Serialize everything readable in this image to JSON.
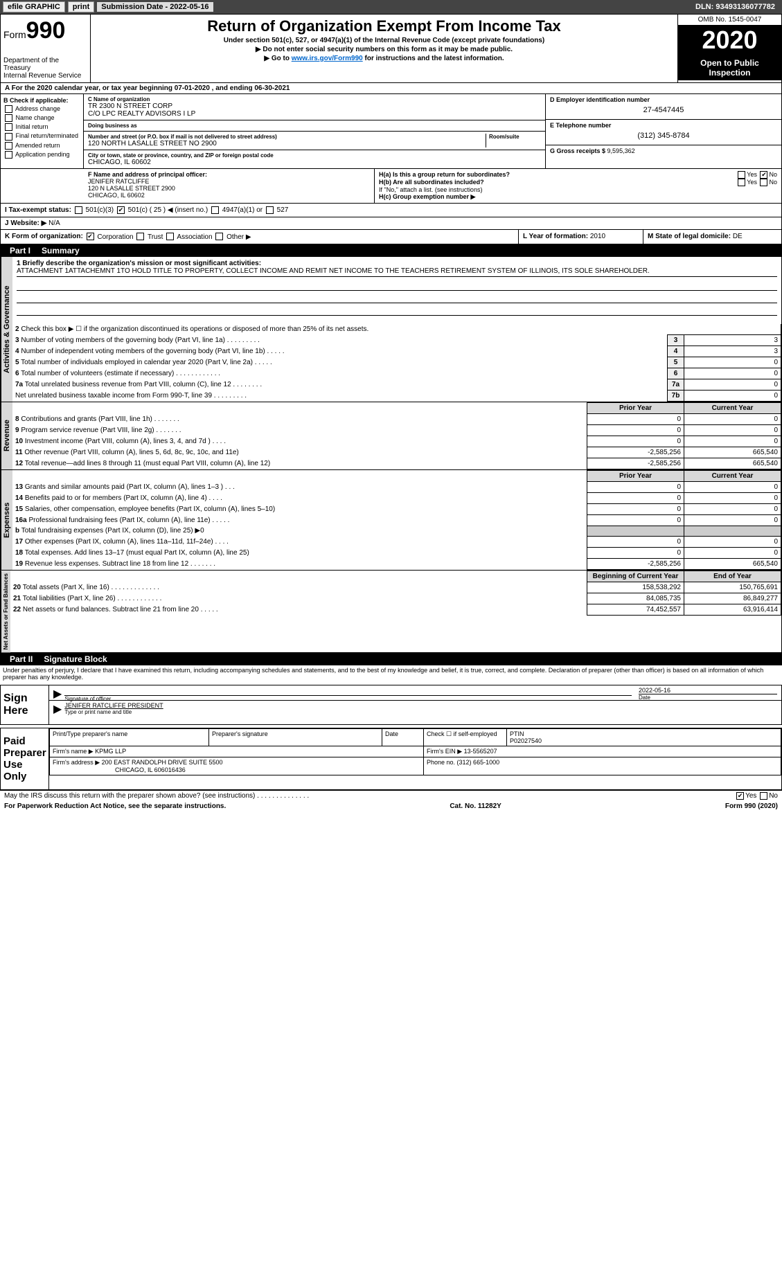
{
  "topbar": {
    "efile": "efile GRAPHIC",
    "print": "print",
    "submission_label": "Submission Date - ",
    "submission_date": "2022-05-16",
    "dln_label": "DLN: ",
    "dln": "93493136077782"
  },
  "header": {
    "form_word": "Form",
    "form_number": "990",
    "dept": "Department of the Treasury\nInternal Revenue Service",
    "title": "Return of Organization Exempt From Income Tax",
    "subtitle": "Under section 501(c), 527, or 4947(a)(1) of the Internal Revenue Code (except private foundations)",
    "note1": "▶ Do not enter social security numbers on this form as it may be made public.",
    "note2_pre": "▶ Go to ",
    "note2_link": "www.irs.gov/Form990",
    "note2_post": " for instructions and the latest information.",
    "omb": "OMB No. 1545-0047",
    "year": "2020",
    "open": "Open to Public Inspection"
  },
  "period": {
    "prefix": "A For the 2020 calendar year, or tax year beginning ",
    "start": "07-01-2020",
    "mid": " , and ending ",
    "end": "06-30-2021"
  },
  "sectionB": {
    "label": "B Check if applicable:",
    "options": [
      "Address change",
      "Name change",
      "Initial return",
      "Final return/terminated",
      "Amended return",
      "Application pending"
    ]
  },
  "sectionC": {
    "name_lbl": "C Name of organization",
    "name": "TR 2300 N STREET CORP",
    "care_of": "C/O LPC REALTY ADVISORS I LP",
    "dba_lbl": "Doing business as",
    "dba": "",
    "addr_lbl": "Number and street (or P.O. box if mail is not delivered to street address)",
    "addr": "120 NORTH LASALLE STREET NO 2900",
    "room_lbl": "Room/suite",
    "city_lbl": "City or town, state or province, country, and ZIP or foreign postal code",
    "city": "CHICAGO, IL  60602"
  },
  "sectionD": {
    "ein_lbl": "D Employer identification number",
    "ein": "27-4547445"
  },
  "sectionE": {
    "tel_lbl": "E Telephone number",
    "tel": "(312) 345-8784"
  },
  "sectionG": {
    "gross_lbl": "G Gross receipts $ ",
    "gross": "9,595,362"
  },
  "sectionF": {
    "lbl": "F Name and address of principal officer:",
    "name": "JENIFER RATCLIFFE",
    "addr1": "120 N LASALLE STREET 2900",
    "addr2": "CHICAGO, IL  60602"
  },
  "sectionH": {
    "ha": "H(a)  Is this a group return for subordinates?",
    "ha_yes": "Yes",
    "ha_no": "No",
    "hb": "H(b)  Are all subordinates included?",
    "hb_yes": "Yes",
    "hb_no": "No",
    "hb_note": "If \"No,\" attach a list. (see instructions)",
    "hc": "H(c)  Group exemption number ▶"
  },
  "sectionI": {
    "lbl": "I   Tax-exempt status:",
    "opt1": "501(c)(3)",
    "opt2_pre": "501(c) ( ",
    "opt2_num": "25",
    "opt2_post": " ) ◀ (insert no.)",
    "opt3": "4947(a)(1) or",
    "opt4": "527"
  },
  "sectionJ": {
    "lbl": "J   Website: ▶",
    "val": "N/A"
  },
  "sectionK": {
    "lbl": "K Form of organization:",
    "opts": [
      "Corporation",
      "Trust",
      "Association",
      "Other ▶"
    ],
    "checked": 0
  },
  "sectionL": {
    "lbl": "L Year of formation: ",
    "val": "2010"
  },
  "sectionM": {
    "lbl": "M State of legal domicile: ",
    "val": "DE"
  },
  "partI": {
    "part": "Part I",
    "title": "Summary"
  },
  "mission": {
    "lbl": "1   Briefly describe the organization's mission or most significant activities:",
    "text": "ATTACHMENT 1ATTACHEMNT 1TO HOLD TITLE TO PROPERTY, COLLECT INCOME AND REMIT NET INCOME TO THE TEACHERS RETIREMENT SYSTEM OF ILLINOIS, ITS SOLE SHAREHOLDER."
  },
  "governance_lines": [
    {
      "n": "2",
      "t": "Check this box ▶ ☐  if the organization discontinued its operations or disposed of more than 25% of its net assets."
    },
    {
      "n": "3",
      "t": "Number of voting members of the governing body (Part VI, line 1a)  .  .  .  .  .  .  .  .  .",
      "col": "3",
      "v": "3"
    },
    {
      "n": "4",
      "t": "Number of independent voting members of the governing body (Part VI, line 1b)  .  .  .  .  .",
      "col": "4",
      "v": "3"
    },
    {
      "n": "5",
      "t": "Total number of individuals employed in calendar year 2020 (Part V, line 2a)  .  .  .  .  .",
      "col": "5",
      "v": "0"
    },
    {
      "n": "6",
      "t": "Total number of volunteers (estimate if necessary)  .  .  .  .  .  .  .  .  .  .  .  .",
      "col": "6",
      "v": "0"
    },
    {
      "n": "7a",
      "t": "Total unrelated business revenue from Part VIII, column (C), line 12  .  .  .  .  .  .  .  .",
      "col": "7a",
      "v": "0"
    },
    {
      "n": "",
      "t": "Net unrelated business taxable income from Form 990-T, line 39  .  .  .  .  .  .  .  .  .",
      "col": "7b",
      "v": "0"
    }
  ],
  "fin_headers": {
    "prior": "Prior Year",
    "current": "Current Year",
    "boy": "Beginning of Current Year",
    "eoy": "End of Year"
  },
  "revenue": [
    {
      "n": "8",
      "t": "Contributions and grants (Part VIII, line 1h)  .  .  .  .  .  .  .",
      "p": "0",
      "c": "0"
    },
    {
      "n": "9",
      "t": "Program service revenue (Part VIII, line 2g)  .  .  .  .  .  .  .",
      "p": "0",
      "c": "0"
    },
    {
      "n": "10",
      "t": "Investment income (Part VIII, column (A), lines 3, 4, and 7d )  .  .  .  .",
      "p": "0",
      "c": "0"
    },
    {
      "n": "11",
      "t": "Other revenue (Part VIII, column (A), lines 5, 6d, 8c, 9c, 10c, and 11e)",
      "p": "-2,585,256",
      "c": "665,540"
    },
    {
      "n": "12",
      "t": "Total revenue—add lines 8 through 11 (must equal Part VIII, column (A), line 12)",
      "p": "-2,585,256",
      "c": "665,540"
    }
  ],
  "expenses": [
    {
      "n": "13",
      "t": "Grants and similar amounts paid (Part IX, column (A), lines 1–3 )  .  .  .",
      "p": "0",
      "c": "0"
    },
    {
      "n": "14",
      "t": "Benefits paid to or for members (Part IX, column (A), line 4)  .  .  .  .",
      "p": "0",
      "c": "0"
    },
    {
      "n": "15",
      "t": "Salaries, other compensation, employee benefits (Part IX, column (A), lines 5–10)",
      "p": "0",
      "c": "0"
    },
    {
      "n": "16a",
      "t": "Professional fundraising fees (Part IX, column (A), line 11e)  .  .  .  .  .",
      "p": "0",
      "c": "0"
    },
    {
      "n": "b",
      "t": "Total fundraising expenses (Part IX, column (D), line 25) ▶0",
      "p": "",
      "c": "",
      "shade": true
    },
    {
      "n": "17",
      "t": "Other expenses (Part IX, column (A), lines 11a–11d, 11f–24e)  .  .  .  .",
      "p": "0",
      "c": "0"
    },
    {
      "n": "18",
      "t": "Total expenses. Add lines 13–17 (must equal Part IX, column (A), line 25)",
      "p": "0",
      "c": "0"
    },
    {
      "n": "19",
      "t": "Revenue less expenses. Subtract line 18 from line 12  .  .  .  .  .  .  .",
      "p": "-2,585,256",
      "c": "665,540"
    }
  ],
  "netassets": [
    {
      "n": "20",
      "t": "Total assets (Part X, line 16)  .  .  .  .  .  .  .  .  .  .  .  .  .",
      "p": "158,538,292",
      "c": "150,765,691"
    },
    {
      "n": "21",
      "t": "Total liabilities (Part X, line 26)  .  .  .  .  .  .  .  .  .  .  .  .",
      "p": "84,085,735",
      "c": "86,849,277"
    },
    {
      "n": "22",
      "t": "Net assets or fund balances. Subtract line 21 from line 20  .  .  .  .  .",
      "p": "74,452,557",
      "c": "63,916,414"
    }
  ],
  "vert_labels": {
    "gov": "Activities & Governance",
    "rev": "Revenue",
    "exp": "Expenses",
    "net": "Net Assets or Fund Balances"
  },
  "partII": {
    "part": "Part II",
    "title": "Signature Block"
  },
  "sig": {
    "declaration": "Under penalties of perjury, I declare that I have examined this return, including accompanying schedules and statements, and to the best of my knowledge and belief, it is true, correct, and complete. Declaration of preparer (other than officer) is based on all information of which preparer has any knowledge.",
    "sign_here": "Sign Here",
    "sig_officer_lbl": "Signature of officer",
    "sig_date": "2022-05-16",
    "date_lbl": "Date",
    "name_title": "JENIFER RATCLIFFE PRESIDENT",
    "name_title_lbl": "Type or print name and title"
  },
  "prep": {
    "title": "Paid Preparer Use Only",
    "h1": "Print/Type preparer's name",
    "h2": "Preparer's signature",
    "h3": "Date",
    "h4_a": "Check ☐ if self-employed",
    "h4_b": "PTIN",
    "ptin": "P02027540",
    "firm_lbl": "Firm's name   ▶ ",
    "firm": "KPMG LLP",
    "ein_lbl": "Firm's EIN ▶ ",
    "ein": "13-5565207",
    "addr_lbl": "Firm's address ▶ ",
    "addr1": "200 EAST RANDOLPH DRIVE SUITE 5500",
    "addr2": "CHICAGO, IL  606016436",
    "phone_lbl": "Phone no. ",
    "phone": "(312) 665-1000"
  },
  "may_irs": {
    "text": "May the IRS discuss this return with the preparer shown above? (see instructions)  .  .  .  .  .  .  .  .  .  .  .  .  .  .",
    "yes": "Yes",
    "no": "No"
  },
  "footer": {
    "left": "For Paperwork Reduction Act Notice, see the separate instructions.",
    "mid": "Cat. No. 11282Y",
    "right_pre": "Form ",
    "right_form": "990",
    "right_post": " (2020)"
  },
  "colors": {
    "bar_bg": "#000000",
    "bar_fg": "#ffffff",
    "shade": "#d8d8d8",
    "link": "#0066cc"
  }
}
